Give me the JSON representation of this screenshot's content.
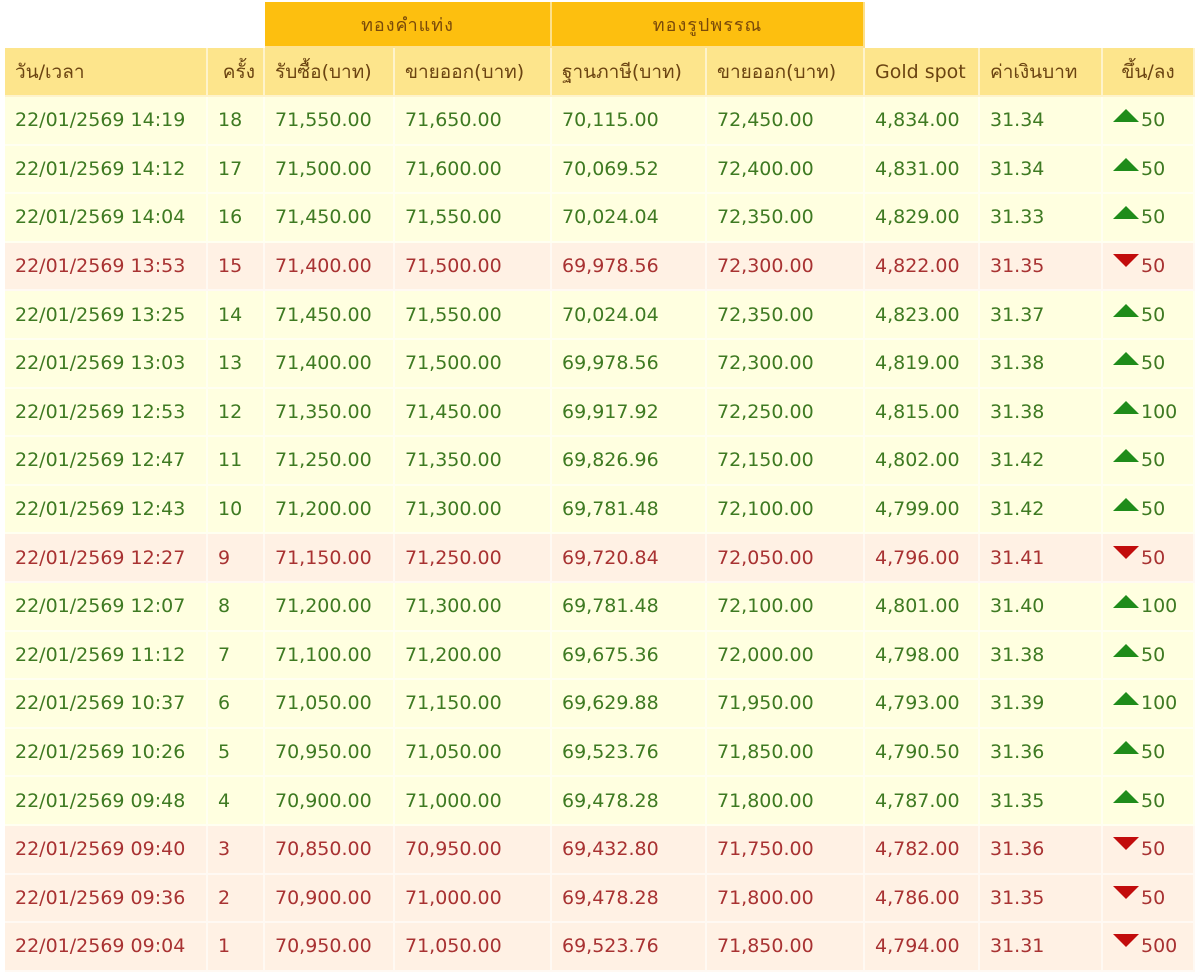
{
  "groups": {
    "bar_gold": "ทองคำแท่ง",
    "ornament_gold": "ทองรูปพรรณ"
  },
  "columns": {
    "datetime": "วัน/เวลา",
    "round": "ครั้ง",
    "bar_buy": "รับซื้อ(บาท)",
    "bar_sell": "ขายออก(บาท)",
    "ornament_tax_base": "ฐานภาษี(บาท)",
    "ornament_sell": "ขายออก(บาท)",
    "gold_spot": "Gold spot",
    "thb_rate": "ค่าเงินบาท",
    "change": "ขึ้น/ลง"
  },
  "colors": {
    "group_header_bg": "#fdbf0f",
    "column_header_bg": "#fde58c",
    "up_row_bg": "#ffffe0",
    "up_text": "#3e7a22",
    "up_arrow": "#1f8c1a",
    "down_row_bg": "#fff1e4",
    "down_text": "#a83232",
    "down_arrow": "#c20c0c"
  },
  "rows": [
    {
      "datetime": "22/01/2569 14:19",
      "round": "18",
      "bar_buy": "71,550.00",
      "bar_sell": "71,650.00",
      "ornament_tax_base": "70,115.00",
      "ornament_sell": "72,450.00",
      "gold_spot": "4,834.00",
      "thb_rate": "31.34",
      "direction": "up",
      "change": "50"
    },
    {
      "datetime": "22/01/2569 14:12",
      "round": "17",
      "bar_buy": "71,500.00",
      "bar_sell": "71,600.00",
      "ornament_tax_base": "70,069.52",
      "ornament_sell": "72,400.00",
      "gold_spot": "4,831.00",
      "thb_rate": "31.34",
      "direction": "up",
      "change": "50"
    },
    {
      "datetime": "22/01/2569 14:04",
      "round": "16",
      "bar_buy": "71,450.00",
      "bar_sell": "71,550.00",
      "ornament_tax_base": "70,024.04",
      "ornament_sell": "72,350.00",
      "gold_spot": "4,829.00",
      "thb_rate": "31.33",
      "direction": "up",
      "change": "50"
    },
    {
      "datetime": "22/01/2569 13:53",
      "round": "15",
      "bar_buy": "71,400.00",
      "bar_sell": "71,500.00",
      "ornament_tax_base": "69,978.56",
      "ornament_sell": "72,300.00",
      "gold_spot": "4,822.00",
      "thb_rate": "31.35",
      "direction": "down",
      "change": "50"
    },
    {
      "datetime": "22/01/2569 13:25",
      "round": "14",
      "bar_buy": "71,450.00",
      "bar_sell": "71,550.00",
      "ornament_tax_base": "70,024.04",
      "ornament_sell": "72,350.00",
      "gold_spot": "4,823.00",
      "thb_rate": "31.37",
      "direction": "up",
      "change": "50"
    },
    {
      "datetime": "22/01/2569 13:03",
      "round": "13",
      "bar_buy": "71,400.00",
      "bar_sell": "71,500.00",
      "ornament_tax_base": "69,978.56",
      "ornament_sell": "72,300.00",
      "gold_spot": "4,819.00",
      "thb_rate": "31.38",
      "direction": "up",
      "change": "50"
    },
    {
      "datetime": "22/01/2569 12:53",
      "round": "12",
      "bar_buy": "71,350.00",
      "bar_sell": "71,450.00",
      "ornament_tax_base": "69,917.92",
      "ornament_sell": "72,250.00",
      "gold_spot": "4,815.00",
      "thb_rate": "31.38",
      "direction": "up",
      "change": "100"
    },
    {
      "datetime": "22/01/2569 12:47",
      "round": "11",
      "bar_buy": "71,250.00",
      "bar_sell": "71,350.00",
      "ornament_tax_base": "69,826.96",
      "ornament_sell": "72,150.00",
      "gold_spot": "4,802.00",
      "thb_rate": "31.42",
      "direction": "up",
      "change": "50"
    },
    {
      "datetime": "22/01/2569 12:43",
      "round": "10",
      "bar_buy": "71,200.00",
      "bar_sell": "71,300.00",
      "ornament_tax_base": "69,781.48",
      "ornament_sell": "72,100.00",
      "gold_spot": "4,799.00",
      "thb_rate": "31.42",
      "direction": "up",
      "change": "50"
    },
    {
      "datetime": "22/01/2569 12:27",
      "round": "9",
      "bar_buy": "71,150.00",
      "bar_sell": "71,250.00",
      "ornament_tax_base": "69,720.84",
      "ornament_sell": "72,050.00",
      "gold_spot": "4,796.00",
      "thb_rate": "31.41",
      "direction": "down",
      "change": "50"
    },
    {
      "datetime": "22/01/2569 12:07",
      "round": "8",
      "bar_buy": "71,200.00",
      "bar_sell": "71,300.00",
      "ornament_tax_base": "69,781.48",
      "ornament_sell": "72,100.00",
      "gold_spot": "4,801.00",
      "thb_rate": "31.40",
      "direction": "up",
      "change": "100"
    },
    {
      "datetime": "22/01/2569 11:12",
      "round": "7",
      "bar_buy": "71,100.00",
      "bar_sell": "71,200.00",
      "ornament_tax_base": "69,675.36",
      "ornament_sell": "72,000.00",
      "gold_spot": "4,798.00",
      "thb_rate": "31.38",
      "direction": "up",
      "change": "50"
    },
    {
      "datetime": "22/01/2569 10:37",
      "round": "6",
      "bar_buy": "71,050.00",
      "bar_sell": "71,150.00",
      "ornament_tax_base": "69,629.88",
      "ornament_sell": "71,950.00",
      "gold_spot": "4,793.00",
      "thb_rate": "31.39",
      "direction": "up",
      "change": "100"
    },
    {
      "datetime": "22/01/2569 10:26",
      "round": "5",
      "bar_buy": "70,950.00",
      "bar_sell": "71,050.00",
      "ornament_tax_base": "69,523.76",
      "ornament_sell": "71,850.00",
      "gold_spot": "4,790.50",
      "thb_rate": "31.36",
      "direction": "up",
      "change": "50"
    },
    {
      "datetime": "22/01/2569 09:48",
      "round": "4",
      "bar_buy": "70,900.00",
      "bar_sell": "71,000.00",
      "ornament_tax_base": "69,478.28",
      "ornament_sell": "71,800.00",
      "gold_spot": "4,787.00",
      "thb_rate": "31.35",
      "direction": "up",
      "change": "50"
    },
    {
      "datetime": "22/01/2569 09:40",
      "round": "3",
      "bar_buy": "70,850.00",
      "bar_sell": "70,950.00",
      "ornament_tax_base": "69,432.80",
      "ornament_sell": "71,750.00",
      "gold_spot": "4,782.00",
      "thb_rate": "31.36",
      "direction": "down",
      "change": "50"
    },
    {
      "datetime": "22/01/2569 09:36",
      "round": "2",
      "bar_buy": "70,900.00",
      "bar_sell": "71,000.00",
      "ornament_tax_base": "69,478.28",
      "ornament_sell": "71,800.00",
      "gold_spot": "4,786.00",
      "thb_rate": "31.35",
      "direction": "down",
      "change": "50"
    },
    {
      "datetime": "22/01/2569 09:04",
      "round": "1",
      "bar_buy": "70,950.00",
      "bar_sell": "71,050.00",
      "ornament_tax_base": "69,523.76",
      "ornament_sell": "71,850.00",
      "gold_spot": "4,794.00",
      "thb_rate": "31.31",
      "direction": "down",
      "change": "500"
    }
  ]
}
